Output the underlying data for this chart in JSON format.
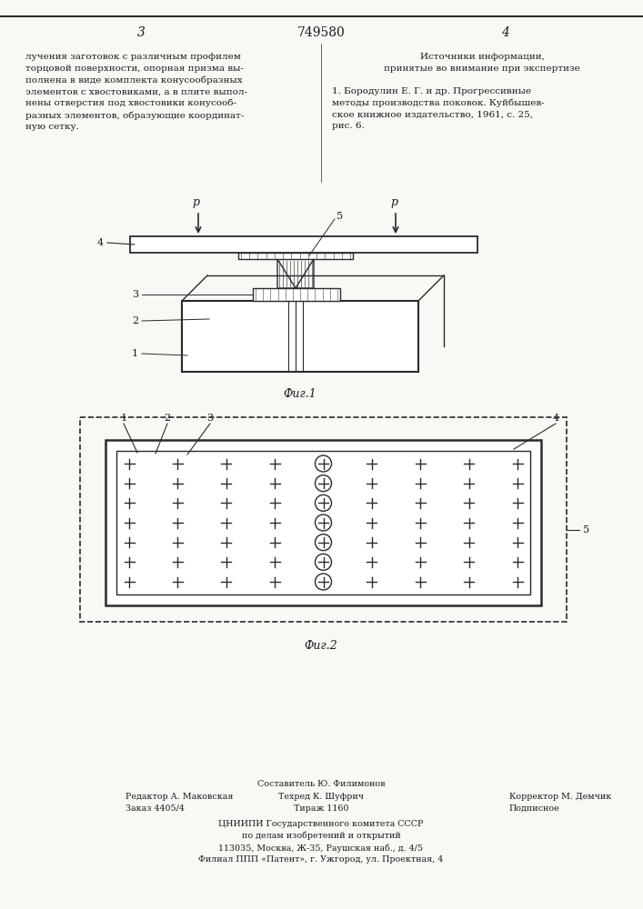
{
  "page_number": "749580",
  "page_left": "3",
  "page_right": "4",
  "text_left": "лучения заготовок с различным профилем\nторцовой поверхности, опорная призма вы-\nполнена в виде комплекта конусообразных\nэлементов с хвостовиками, а в плите выпол-\nнены отверстия под хвостовики конусооб-\nразных элементов, образующие координат-\nную сетку.",
  "text_right_title": "Источники информации,\nпринятые во внимание при экспертизе",
  "text_right_body": "1. Бородулин Е. Г. и др. Прогрессивные\nметоды производства поковок. Куйбышев-\nское книжное издательство, 1961, с. 25,\nрис. 6.",
  "fig1_caption": "Фиг.1",
  "fig2_caption": "Фиг.2",
  "footer_line1_left": "Редактор А. Маковская",
  "footer_line1_center": "Составитель Ю. Филимонов",
  "footer_line2_left": "Заказ 4405/4",
  "footer_line2_center": "Техред К. Шуфрич",
  "footer_line2_right": "Корректор М. Демчик",
  "footer_line3_center": "Тираж 1160",
  "footer_line3_right": "Подписное",
  "footer_org1": "ЦНИИПИ Государственного комитета СССР",
  "footer_org2": "по делам изобретений и открытий",
  "footer_org3": "113035, Москва, Ж-35, Раушская наб., д. 4/5",
  "footer_org4": "Филиал ППП «Патент», г. Ужгород, ул. Проектная, 4",
  "bg_color": "#f8f8f4",
  "text_color": "#1a1a1a",
  "line_color": "#2a2a2a"
}
